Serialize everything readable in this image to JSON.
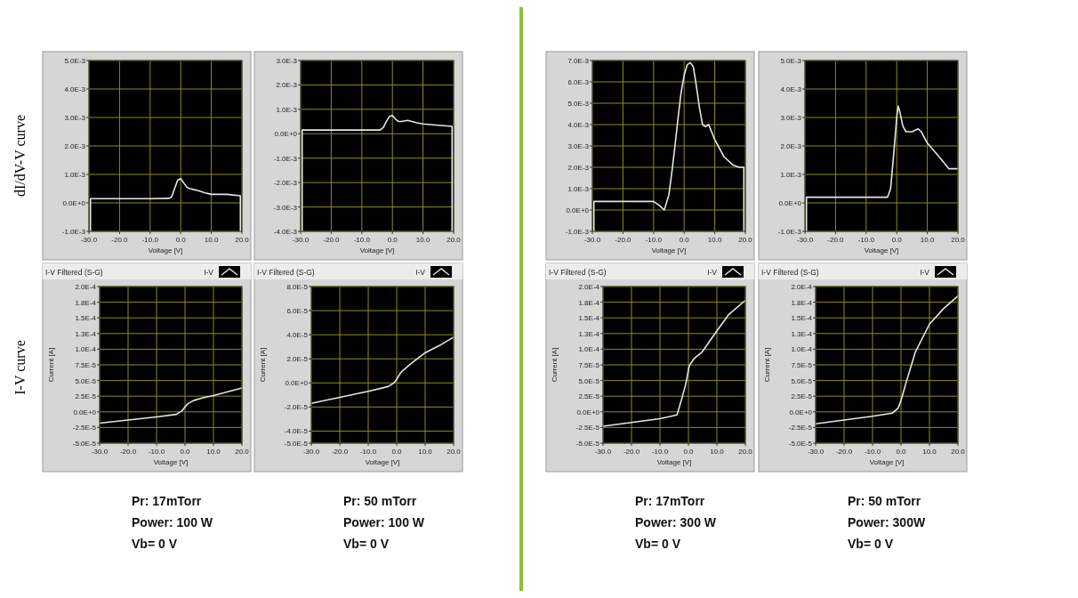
{
  "chart_data": [
    {
      "type": "line",
      "ylabel": "dI/dV-V curve",
      "xlabel": "Voltage [V]",
      "grid": true,
      "xlim": [
        -30,
        20
      ],
      "ylim": [
        -0.001,
        0.005
      ],
      "xticks": [
        {
          "value": -30,
          "label": "-30.0"
        },
        {
          "value": -20,
          "label": "-20.0"
        },
        {
          "value": -10,
          "label": "-10.0"
        },
        {
          "value": 0,
          "label": "0.0"
        },
        {
          "value": 10,
          "label": "10.0"
        },
        {
          "value": 20,
          "label": "20.0"
        }
      ],
      "yticks": [
        {
          "value": 0.005,
          "label": "5.0E-3"
        },
        {
          "value": 0.004,
          "label": "4.0E-3"
        },
        {
          "value": 0.003,
          "label": "3.0E-3"
        },
        {
          "value": 0.002,
          "label": "2.0E-3"
        },
        {
          "value": 0.001,
          "label": "1.0E-3"
        },
        {
          "value": 0,
          "label": "0.0E+0"
        },
        {
          "value": -0.001,
          "label": "-1.0E-3"
        }
      ],
      "series": [
        {
          "color": "#e6e6e6",
          "x": [
            -29.5,
            -29.5,
            -10,
            -4,
            -3,
            -2,
            -1,
            0,
            1,
            2,
            3,
            5,
            8,
            10,
            15,
            19.5,
            19.5
          ],
          "values": [
            -0.001,
            0.00015,
            0.00015,
            0.00016,
            0.0002,
            0.0005,
            0.0008,
            0.00085,
            0.0007,
            0.00055,
            0.0005,
            0.00045,
            0.00035,
            0.0003,
            0.0003,
            0.00025,
            -0.001
          ]
        }
      ]
    },
    {
      "type": "line",
      "xlabel": "Voltage [V]",
      "grid": true,
      "xlim": [
        -30,
        20
      ],
      "ylim": [
        -0.004,
        0.003
      ],
      "xticks": [
        {
          "value": -30,
          "label": "-30.0"
        },
        {
          "value": -20,
          "label": "-20.0"
        },
        {
          "value": -10,
          "label": "-10.0"
        },
        {
          "value": 0,
          "label": "0.0"
        },
        {
          "value": 10,
          "label": "10.0"
        },
        {
          "value": 20,
          "label": "20.0"
        }
      ],
      "yticks": [
        {
          "value": 0.003,
          "label": "3.0E-3"
        },
        {
          "value": 0.002,
          "label": "2.0E-3"
        },
        {
          "value": 0.001,
          "label": "1.0E-3"
        },
        {
          "value": 0,
          "label": "0.0E+0"
        },
        {
          "value": -0.001,
          "label": "-1.0E-3"
        },
        {
          "value": -0.002,
          "label": "-2.0E-3"
        },
        {
          "value": -0.003,
          "label": "-3.0E-3"
        },
        {
          "value": -0.004,
          "label": "-4.0E-3"
        }
      ],
      "series": [
        {
          "color": "#e6e6e6",
          "x": [
            -29.5,
            -29.5,
            -10,
            -4,
            -3,
            -2,
            -1,
            0,
            1,
            2,
            3,
            5,
            8,
            10,
            15,
            19.5,
            19.5
          ],
          "values": [
            -0.004,
            0.00015,
            0.00015,
            0.00015,
            0.00025,
            0.0005,
            0.0007,
            0.00075,
            0.0006,
            0.0005,
            0.0005,
            0.00055,
            0.00045,
            0.0004,
            0.00035,
            0.0003,
            -0.004
          ]
        }
      ]
    },
    {
      "type": "line",
      "xlabel": "Voltage [V]",
      "grid": true,
      "xlim": [
        -30,
        20
      ],
      "ylim": [
        -0.001,
        0.007
      ],
      "xticks": [
        {
          "value": -30,
          "label": "-30.0"
        },
        {
          "value": -20,
          "label": "-20.0"
        },
        {
          "value": -10,
          "label": "-10.0"
        },
        {
          "value": 0,
          "label": "0.0"
        },
        {
          "value": 10,
          "label": "10.0"
        },
        {
          "value": 20,
          "label": "20.0"
        }
      ],
      "yticks": [
        {
          "value": 0.007,
          "label": "7.0E-3"
        },
        {
          "value": 0.006,
          "label": "6.0E-3"
        },
        {
          "value": 0.005,
          "label": "5.0E-3"
        },
        {
          "value": 0.004,
          "label": "4.0E-3"
        },
        {
          "value": 0.003,
          "label": "3.0E-3"
        },
        {
          "value": 0.002,
          "label": "2.0E-3"
        },
        {
          "value": 0.001,
          "label": "1.0E-3"
        },
        {
          "value": 0,
          "label": "0.0E+0"
        },
        {
          "value": -0.001,
          "label": "-1.0E-3"
        }
      ],
      "series": [
        {
          "color": "#e6e6e6",
          "x": [
            -29.5,
            -29.5,
            -10,
            -8,
            -6.5,
            -5,
            -4,
            -3,
            -2,
            -1,
            0,
            1,
            2,
            3,
            4,
            5,
            6,
            7,
            8,
            10,
            13,
            16,
            18,
            19.5,
            19.5
          ],
          "values": [
            -0.001,
            0.0004,
            0.0004,
            0.0002,
            0,
            0.0007,
            0.0018,
            0.003,
            0.0043,
            0.0055,
            0.0063,
            0.0068,
            0.0069,
            0.0067,
            0.0058,
            0.0048,
            0.004,
            0.0039,
            0.004,
            0.0033,
            0.0025,
            0.0021,
            0.002,
            0.002,
            -0.001
          ]
        }
      ]
    },
    {
      "type": "line",
      "xlabel": "Voltage [V]",
      "grid": true,
      "xlim": [
        -30,
        20
      ],
      "ylim": [
        -0.001,
        0.005
      ],
      "xticks": [
        {
          "value": -30,
          "label": "-30.0"
        },
        {
          "value": -20,
          "label": "-20.0"
        },
        {
          "value": -10,
          "label": "-10.0"
        },
        {
          "value": 0,
          "label": "0.0"
        },
        {
          "value": 10,
          "label": "10.0"
        },
        {
          "value": 20,
          "label": "20.0"
        }
      ],
      "yticks": [
        {
          "value": 0.005,
          "label": "5.0E-3"
        },
        {
          "value": 0.004,
          "label": "4.0E-3"
        },
        {
          "value": 0.003,
          "label": "3.0E-3"
        },
        {
          "value": 0.002,
          "label": "2.0E-3"
        },
        {
          "value": 0.001,
          "label": "1.0E-3"
        },
        {
          "value": 0,
          "label": "0.0E+0"
        },
        {
          "value": -0.001,
          "label": "-1.0E-3"
        }
      ],
      "series": [
        {
          "color": "#e6e6e6",
          "x": [
            -29.5,
            -29.5,
            -10,
            -3,
            -2,
            -1,
            0,
            0.5,
            1,
            2,
            3,
            5,
            7,
            8,
            10,
            14,
            17,
            20
          ],
          "values": [
            -0.001,
            0.0002,
            0.0002,
            0.0002,
            0.0005,
            0.0017,
            0.003,
            0.0034,
            0.0032,
            0.0027,
            0.0025,
            0.0025,
            0.0026,
            0.0025,
            0.0021,
            0.0016,
            0.0012,
            0.0012
          ]
        }
      ]
    },
    {
      "type": "line",
      "title": "I-V Filtered (S-G)",
      "xlabel": "Voltage [V]",
      "ylabel": "Current [A]",
      "grid": true,
      "legend": "top right",
      "xlim": [
        -30,
        20
      ],
      "ylim": [
        -5e-05,
        0.0002
      ],
      "annotations": [
        "I-V curve",
        "Pr: 17mTorr",
        "Power: 100 W",
        "Vb= 0 V"
      ],
      "xticks": [
        {
          "value": -30,
          "label": "-30.0"
        },
        {
          "value": -20,
          "label": "-20.0"
        },
        {
          "value": -10,
          "label": "-10.0"
        },
        {
          "value": 0,
          "label": "0.0"
        },
        {
          "value": 10,
          "label": "10.0"
        },
        {
          "value": 20,
          "label": "20.0"
        }
      ],
      "yticks": [
        {
          "value": 0.0002,
          "label": "2.0E-4"
        },
        {
          "value": 0.000175,
          "label": "1.8E-4"
        },
        {
          "value": 0.00015,
          "label": "1.5E-4"
        },
        {
          "value": 0.000125,
          "label": "1.3E-4"
        },
        {
          "value": 0.0001,
          "label": "1.0E-4"
        },
        {
          "value": 7.5e-05,
          "label": "7.5E-5"
        },
        {
          "value": 5e-05,
          "label": "5.0E-5"
        },
        {
          "value": 2.5e-05,
          "label": "2.5E-5"
        },
        {
          "value": 0,
          "label": "0.0E+0"
        },
        {
          "value": -2.5e-05,
          "label": "-2.5E-5"
        },
        {
          "value": -5e-05,
          "label": "-5.0E-5"
        }
      ],
      "series": [
        {
          "name": "I-V",
          "color": "#e6e6e6",
          "x": [
            -30,
            -20,
            -10,
            -3,
            -1,
            0,
            1,
            3,
            6,
            10,
            15,
            20
          ],
          "values": [
            -1.8e-05,
            -1.3e-05,
            -8e-06,
            -4e-06,
            2e-06,
            8e-06,
            1.3e-05,
            1.8e-05,
            2.2e-05,
            2.6e-05,
            3.2e-05,
            3.8e-05
          ]
        }
      ]
    },
    {
      "type": "line",
      "title": "I-V Filtered (S-G)",
      "xlabel": "Voltage [V]",
      "ylabel": "Current [A]",
      "grid": true,
      "legend": "top right",
      "xlim": [
        -30,
        20
      ],
      "ylim": [
        -5e-05,
        8e-05
      ],
      "annotations": [
        "Pr: 50 mTorr",
        "Power: 100 W",
        "Vb= 0 V"
      ],
      "xticks": [
        {
          "value": -30,
          "label": "-30.0"
        },
        {
          "value": -20,
          "label": "-20.0"
        },
        {
          "value": -10,
          "label": "-10.0"
        },
        {
          "value": 0,
          "label": "0.0"
        },
        {
          "value": 10,
          "label": "10.0"
        },
        {
          "value": 20,
          "label": "20.0"
        }
      ],
      "yticks": [
        {
          "value": 8e-05,
          "label": "8.0E-5"
        },
        {
          "value": 6e-05,
          "label": "6.0E-5"
        },
        {
          "value": 4e-05,
          "label": "4.0E-5"
        },
        {
          "value": 2e-05,
          "label": "2.0E-5"
        },
        {
          "value": 0,
          "label": "0.0E+0"
        },
        {
          "value": -2e-05,
          "label": "-2.0E-5"
        },
        {
          "value": -4e-05,
          "label": "-4.0E-5"
        },
        {
          "value": -5e-05,
          "label": "-5.0E-5"
        }
      ],
      "series": [
        {
          "name": "I-V",
          "color": "#e6e6e6",
          "x": [
            -30,
            -20,
            -10,
            -3,
            -1,
            0,
            1,
            2,
            5,
            10,
            15,
            20
          ],
          "values": [
            -1.7e-05,
            -1.2e-05,
            -7e-06,
            -3e-06,
            0,
            3e-06,
            7e-06,
            1e-05,
            1.6e-05,
            2.5e-05,
            3.1e-05,
            3.8e-05
          ]
        }
      ]
    },
    {
      "type": "line",
      "title": "I-V Filtered (S-G)",
      "xlabel": "Voltage [V]",
      "ylabel": "Current [A]",
      "grid": true,
      "legend": "top right",
      "xlim": [
        -30,
        20
      ],
      "ylim": [
        -5e-05,
        0.0002
      ],
      "annotations": [
        "Pr: 17mTorr",
        "Power: 300 W",
        "Vb= 0 V"
      ],
      "xticks": [
        {
          "value": -30,
          "label": "-30.0"
        },
        {
          "value": -20,
          "label": "-20.0"
        },
        {
          "value": -10,
          "label": "-10.0"
        },
        {
          "value": 0,
          "label": "0.0"
        },
        {
          "value": 10,
          "label": "10.0"
        },
        {
          "value": 20,
          "label": "20.0"
        }
      ],
      "yticks": [
        {
          "value": 0.0002,
          "label": "2.0E-4"
        },
        {
          "value": 0.000175,
          "label": "1.8E-4"
        },
        {
          "value": 0.00015,
          "label": "1.5E-4"
        },
        {
          "value": 0.000125,
          "label": "1.3E-4"
        },
        {
          "value": 0.0001,
          "label": "1.0E-4"
        },
        {
          "value": 7.5e-05,
          "label": "7.5E-5"
        },
        {
          "value": 5e-05,
          "label": "5.0E-5"
        },
        {
          "value": 2.5e-05,
          "label": "2.5E-5"
        },
        {
          "value": 0,
          "label": "0.0E+0"
        },
        {
          "value": -2.5e-05,
          "label": "-2.5E-5"
        },
        {
          "value": -5e-05,
          "label": "-5.0E-5"
        }
      ],
      "series": [
        {
          "name": "I-V",
          "color": "#e6e6e6",
          "x": [
            -30,
            -20,
            -10,
            -5,
            -4,
            -2.2,
            -0.9,
            0.3,
            2,
            4.7,
            9.8,
            14.1,
            20
          ],
          "values": [
            -2.3e-05,
            -1.7e-05,
            -1.1e-05,
            -6e-06,
            -5e-06,
            2.3e-05,
            4.5e-05,
            7.4e-05,
            8.5e-05,
            9.5e-05,
            0.000128,
            0.000155,
            0.000178
          ]
        }
      ]
    },
    {
      "type": "line",
      "title": "I-V Filtered (S-G)",
      "xlabel": "Voltage [V]",
      "ylabel": "Current [A]",
      "grid": true,
      "legend": "top right",
      "xlim": [
        -30,
        20
      ],
      "ylim": [
        -5e-05,
        0.0002
      ],
      "annotations": [
        "Pr: 50 mTorr",
        "Power: 300W",
        "Vb= 0 V"
      ],
      "xticks": [
        {
          "value": -30,
          "label": "-30.0"
        },
        {
          "value": -20,
          "label": "-20.0"
        },
        {
          "value": -10,
          "label": "-10.0"
        },
        {
          "value": 0,
          "label": "0.0"
        },
        {
          "value": 10,
          "label": "10.0"
        },
        {
          "value": 20,
          "label": "20.0"
        }
      ],
      "yticks": [
        {
          "value": 0.0002,
          "label": "2.0E-4"
        },
        {
          "value": 0.000175,
          "label": "1.8E-4"
        },
        {
          "value": 0.00015,
          "label": "1.5E-4"
        },
        {
          "value": 0.000125,
          "label": "1.3E-4"
        },
        {
          "value": 0.0001,
          "label": "1.0E-4"
        },
        {
          "value": 7.5e-05,
          "label": "7.5E-5"
        },
        {
          "value": 5e-05,
          "label": "5.0E-5"
        },
        {
          "value": 2.5e-05,
          "label": "2.5E-5"
        },
        {
          "value": 0,
          "label": "0.0E+0"
        },
        {
          "value": -2.5e-05,
          "label": "-2.5E-5"
        },
        {
          "value": -5e-05,
          "label": "-5.0E-5"
        }
      ],
      "series": [
        {
          "name": "I-V",
          "color": "#e6e6e6",
          "x": [
            -30,
            -20,
            -10,
            -3,
            -1,
            0,
            2,
            5,
            10,
            15,
            20
          ],
          "values": [
            -1.9e-05,
            -1.3e-05,
            -7e-06,
            -2e-06,
            6e-06,
            1.8e-05,
            5e-05,
            9.5e-05,
            0.00014,
            0.000165,
            0.000185
          ]
        }
      ]
    }
  ]
}
